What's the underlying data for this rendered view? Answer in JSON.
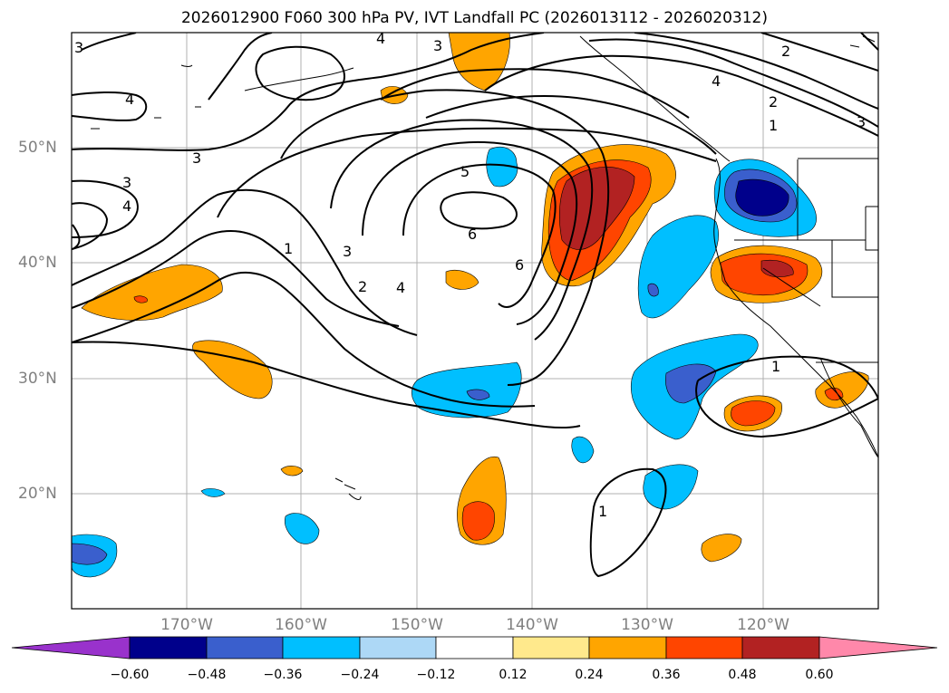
{
  "title": "2026012900 F060 300 hPa PV, IVT Landfall PC (2026013112 - 2026020312)",
  "map": {
    "lon_labels": [
      "170°W",
      "160°W",
      "150°W",
      "140°W",
      "130°W",
      "120°W"
    ],
    "lat_labels": [
      "50°N",
      "40°N",
      "30°N",
      "20°N"
    ],
    "contour_labels": [
      "3",
      "4",
      "3",
      "2",
      "2",
      "1",
      "3",
      "4",
      "3",
      "4",
      "3",
      "4",
      "5",
      "6",
      "6",
      "1",
      "3",
      "2",
      "4",
      "1",
      "1"
    ]
  },
  "colorbar": {
    "ticks": [
      "−0.60",
      "−0.48",
      "−0.36",
      "−0.24",
      "−0.12",
      "0.12",
      "0.24",
      "0.36",
      "0.48",
      "0.60"
    ],
    "colors": [
      "#9932cc",
      "#00008b",
      "#3a5fcd",
      "#00bfff",
      "#add8f6",
      "#ffffff",
      "#ffe98c",
      "#ffa500",
      "#ff4500",
      "#b22222",
      "#ff88aa"
    ]
  },
  "colors": {
    "grid": "#b0b0b0",
    "contour": "#000000",
    "label": "#808080"
  }
}
